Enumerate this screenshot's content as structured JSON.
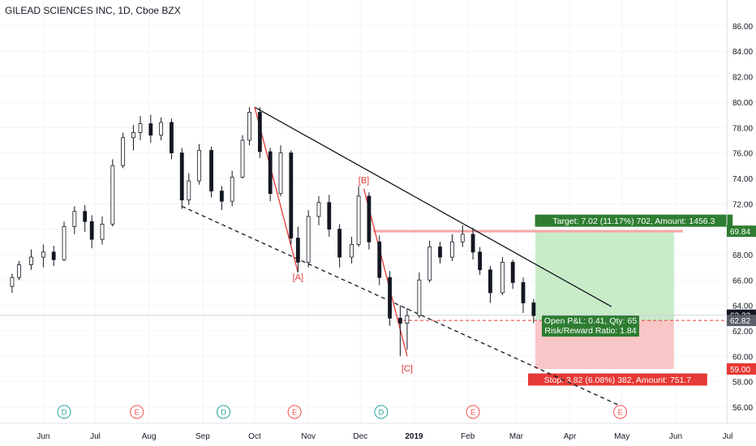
{
  "header": {
    "title": "GILEAD SCIENCES INC, 1D, Cboe BZX"
  },
  "colors": {
    "up": "#26a69a",
    "down": "#ef5350",
    "candle": "#131722",
    "target_fill": "#c8ebc8",
    "stop_fill": "#f8c6c6",
    "target_label": "#2e7d32",
    "stop_label": "#e53935",
    "pattern": "#e53935",
    "trend": "#131722"
  },
  "chart_data": {
    "type": "candlestick",
    "title": "GILEAD SCIENCES INC, 1D, Cboe BZX",
    "y_ticks": [
      "56.00",
      "58.00",
      "60.00",
      "62.00",
      "64.00",
      "66.00",
      "68.00",
      "70.00",
      "72.00",
      "74.00",
      "76.00",
      "78.00",
      "80.00",
      "82.00",
      "84.00",
      "86.00"
    ],
    "x_ticks": [
      "Jun",
      "Jul",
      "Aug",
      "Sep",
      "Oct",
      "Nov",
      "Dec",
      "2019",
      "Feb",
      "Mar",
      "Apr",
      "May",
      "Jun",
      "Jul"
    ],
    "price_labels": [
      {
        "value": 69.84,
        "text": "69.84",
        "style": "target"
      },
      {
        "value": 63.23,
        "text": "63.23",
        "style": "last"
      },
      {
        "value": 62.82,
        "text": "62.82",
        "style": "entry"
      },
      {
        "value": 59.0,
        "text": "59.00",
        "style": "stop"
      }
    ],
    "wave_labels": [
      {
        "text": "[A]",
        "date": "2018-10-26",
        "value": 66.0
      },
      {
        "text": "[B]",
        "date": "2018-12-03",
        "value": 73.6
      },
      {
        "text": "[C]",
        "date": "2018-12-28",
        "value": 58.8
      }
    ],
    "event_markers": [
      {
        "text": "D",
        "type": "dividend",
        "date": "2018-06-13"
      },
      {
        "text": "E",
        "type": "earnings",
        "date": "2018-07-25"
      },
      {
        "text": "D",
        "type": "dividend",
        "date": "2018-09-13"
      },
      {
        "text": "E",
        "type": "earnings",
        "date": "2018-10-24"
      },
      {
        "text": "D",
        "type": "dividend",
        "date": "2018-12-13"
      },
      {
        "text": "E",
        "type": "earnings",
        "date": "2019-02-04"
      },
      {
        "text": "E",
        "type": "earnings",
        "date": "2019-04-30"
      }
    ],
    "position": {
      "entry": 62.82,
      "target": 69.84,
      "stop": 59.0,
      "start_date": "2019-03-12",
      "end_date": "2019-05-31",
      "target_text": "Target: 7.02 (11.17%) 702, Amount: 1456.3",
      "stop_text": "Stop: 3.82 (6.08%) 382, Amount: 751.7",
      "pnl_text": "Open P&L: 0.41, Qty: 65",
      "rr_text": "Risk/Reward Ratio: 1.84"
    },
    "trend_lines": [
      {
        "style": "solid",
        "from": [
          "2018-10-01",
          79.6
        ],
        "to": [
          "2019-04-25",
          63.9
        ]
      },
      {
        "style": "dashed",
        "from": [
          "2018-08-20",
          71.8
        ],
        "to": [
          "2019-04-30",
          56.1
        ]
      }
    ],
    "pattern_lines": [
      {
        "from": [
          "2018-10-01",
          79.6
        ],
        "to": [
          "2018-10-26",
          66.6
        ]
      },
      {
        "from": [
          "2018-12-03",
          73.2
        ],
        "to": [
          "2018-12-28",
          60.0
        ]
      }
    ],
    "last_price": 63.23,
    "candles": [
      {
        "date": "2018-05-14",
        "open": 65.5,
        "high": 66.5,
        "low": 65.0,
        "close": 66.2
      },
      {
        "date": "2018-05-18",
        "open": 66.2,
        "high": 67.5,
        "low": 66.0,
        "close": 67.2
      },
      {
        "date": "2018-05-25",
        "open": 67.2,
        "high": 68.4,
        "low": 66.8,
        "close": 67.8
      },
      {
        "date": "2018-06-01",
        "open": 67.8,
        "high": 68.8,
        "low": 67.0,
        "close": 68.2
      },
      {
        "date": "2018-06-07",
        "open": 68.2,
        "high": 68.7,
        "low": 67.1,
        "close": 67.6
      },
      {
        "date": "2018-06-13",
        "open": 67.6,
        "high": 70.6,
        "low": 67.5,
        "close": 70.2
      },
      {
        "date": "2018-06-19",
        "open": 70.2,
        "high": 71.8,
        "low": 69.6,
        "close": 71.4
      },
      {
        "date": "2018-06-25",
        "open": 71.4,
        "high": 71.9,
        "low": 69.8,
        "close": 70.6
      },
      {
        "date": "2018-06-29",
        "open": 70.6,
        "high": 71.1,
        "low": 68.5,
        "close": 69.2
      },
      {
        "date": "2018-07-05",
        "open": 69.2,
        "high": 71.0,
        "low": 68.8,
        "close": 70.4
      },
      {
        "date": "2018-07-11",
        "open": 70.4,
        "high": 75.5,
        "low": 70.2,
        "close": 75.0
      },
      {
        "date": "2018-07-17",
        "open": 75.0,
        "high": 77.6,
        "low": 74.8,
        "close": 77.2
      },
      {
        "date": "2018-07-23",
        "open": 77.2,
        "high": 78.2,
        "low": 76.2,
        "close": 77.6
      },
      {
        "date": "2018-07-27",
        "open": 77.6,
        "high": 78.9,
        "low": 77.0,
        "close": 78.3
      },
      {
        "date": "2018-08-02",
        "open": 78.3,
        "high": 79.0,
        "low": 76.8,
        "close": 77.4
      },
      {
        "date": "2018-08-08",
        "open": 77.4,
        "high": 78.8,
        "low": 77.0,
        "close": 78.4
      },
      {
        "date": "2018-08-14",
        "open": 78.4,
        "high": 78.7,
        "low": 75.5,
        "close": 76.0
      },
      {
        "date": "2018-08-20",
        "open": 76.0,
        "high": 76.4,
        "low": 71.6,
        "close": 72.3
      },
      {
        "date": "2018-08-24",
        "open": 72.3,
        "high": 74.4,
        "low": 71.9,
        "close": 73.8
      },
      {
        "date": "2018-08-30",
        "open": 73.8,
        "high": 76.7,
        "low": 73.5,
        "close": 76.2
      },
      {
        "date": "2018-09-06",
        "open": 76.2,
        "high": 76.5,
        "low": 72.5,
        "close": 73.0
      },
      {
        "date": "2018-09-12",
        "open": 73.0,
        "high": 73.4,
        "low": 71.5,
        "close": 72.2
      },
      {
        "date": "2018-09-18",
        "open": 72.2,
        "high": 74.6,
        "low": 71.8,
        "close": 74.1
      },
      {
        "date": "2018-09-24",
        "open": 74.1,
        "high": 77.4,
        "low": 74.0,
        "close": 77.0
      },
      {
        "date": "2018-09-28",
        "open": 77.0,
        "high": 79.6,
        "low": 76.6,
        "close": 79.2
      },
      {
        "date": "2018-10-04",
        "open": 79.2,
        "high": 79.6,
        "low": 75.6,
        "close": 76.1
      },
      {
        "date": "2018-10-10",
        "open": 76.1,
        "high": 76.4,
        "low": 72.2,
        "close": 72.8
      },
      {
        "date": "2018-10-16",
        "open": 72.8,
        "high": 76.6,
        "low": 72.6,
        "close": 76.0
      },
      {
        "date": "2018-10-22",
        "open": 76.0,
        "high": 76.2,
        "low": 68.8,
        "close": 69.3
      },
      {
        "date": "2018-10-26",
        "open": 69.3,
        "high": 70.2,
        "low": 66.6,
        "close": 67.4
      },
      {
        "date": "2018-11-01",
        "open": 67.4,
        "high": 71.5,
        "low": 67.0,
        "close": 71.0
      },
      {
        "date": "2018-11-07",
        "open": 71.0,
        "high": 72.6,
        "low": 70.3,
        "close": 72.1
      },
      {
        "date": "2018-11-13",
        "open": 72.1,
        "high": 72.7,
        "low": 69.4,
        "close": 70.0
      },
      {
        "date": "2018-11-19",
        "open": 70.0,
        "high": 70.4,
        "low": 67.0,
        "close": 67.8
      },
      {
        "date": "2018-11-26",
        "open": 67.8,
        "high": 69.4,
        "low": 67.3,
        "close": 68.8
      },
      {
        "date": "2018-11-30",
        "open": 68.8,
        "high": 73.4,
        "low": 68.6,
        "close": 72.6
      },
      {
        "date": "2018-12-06",
        "open": 72.6,
        "high": 72.9,
        "low": 68.4,
        "close": 69.0
      },
      {
        "date": "2018-12-12",
        "open": 69.0,
        "high": 69.5,
        "low": 65.6,
        "close": 66.2
      },
      {
        "date": "2018-12-18",
        "open": 66.2,
        "high": 66.7,
        "low": 62.4,
        "close": 63.0
      },
      {
        "date": "2018-12-24",
        "open": 63.0,
        "high": 64.0,
        "low": 60.0,
        "close": 62.6
      },
      {
        "date": "2018-12-28",
        "open": 62.6,
        "high": 63.8,
        "low": 60.5,
        "close": 63.2
      },
      {
        "date": "2019-01-04",
        "open": 63.2,
        "high": 66.6,
        "low": 63.0,
        "close": 66.0
      },
      {
        "date": "2019-01-10",
        "open": 66.0,
        "high": 69.1,
        "low": 65.8,
        "close": 68.6
      },
      {
        "date": "2019-01-16",
        "open": 68.6,
        "high": 69.0,
        "low": 67.3,
        "close": 67.8
      },
      {
        "date": "2019-01-23",
        "open": 67.8,
        "high": 69.6,
        "low": 67.5,
        "close": 69.0
      },
      {
        "date": "2019-01-29",
        "open": 69.0,
        "high": 70.3,
        "low": 68.6,
        "close": 69.6
      },
      {
        "date": "2019-02-04",
        "open": 69.6,
        "high": 70.1,
        "low": 67.6,
        "close": 68.2
      },
      {
        "date": "2019-02-08",
        "open": 68.2,
        "high": 68.6,
        "low": 66.4,
        "close": 66.8
      },
      {
        "date": "2019-02-14",
        "open": 66.8,
        "high": 67.1,
        "low": 64.2,
        "close": 65.0
      },
      {
        "date": "2019-02-21",
        "open": 65.0,
        "high": 67.8,
        "low": 64.8,
        "close": 67.4
      },
      {
        "date": "2019-02-27",
        "open": 67.4,
        "high": 67.6,
        "low": 65.3,
        "close": 65.8
      },
      {
        "date": "2019-03-05",
        "open": 65.8,
        "high": 66.2,
        "low": 63.4,
        "close": 64.2
      },
      {
        "date": "2019-03-11",
        "open": 64.2,
        "high": 64.5,
        "low": 62.6,
        "close": 63.2
      }
    ]
  }
}
